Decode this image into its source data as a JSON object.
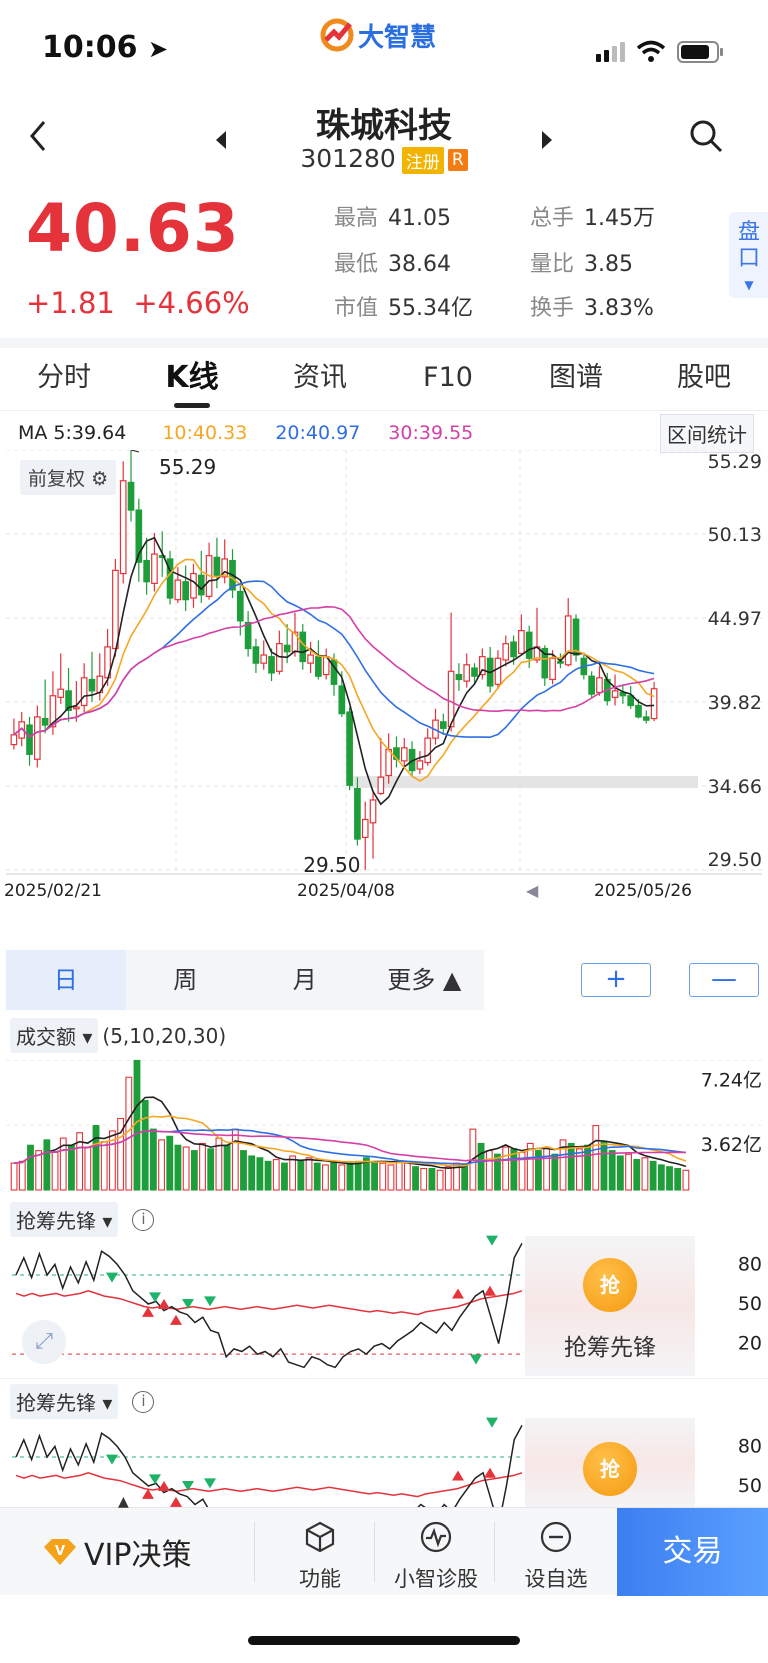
{
  "status": {
    "time": "10:06"
  },
  "app": {
    "logo_text": "大智慧"
  },
  "stock": {
    "name": "珠城科技",
    "code": "301280",
    "badge_registered": "注册",
    "badge_r": "R",
    "price": "40.63",
    "change": "+1.81",
    "change_pct": "+4.66%",
    "stats": [
      {
        "label": "最高",
        "value": "41.05"
      },
      {
        "label": "总手",
        "value": "1.45万"
      },
      {
        "label": "最低",
        "value": "38.64"
      },
      {
        "label": "量比",
        "value": "3.85"
      },
      {
        "label": "市值",
        "value": "55.34亿"
      },
      {
        "label": "换手",
        "value": "3.83%"
      }
    ],
    "pankou": "盘口"
  },
  "tabs": [
    "分时",
    "K线",
    "资讯",
    "F10",
    "图谱",
    "股吧"
  ],
  "active_tab": "K线",
  "ma": {
    "ma5": "MA 5:39.64",
    "ma10": "10:40.33",
    "ma20": "20:40.97",
    "ma30": "30:39.55"
  },
  "colors": {
    "ma5": "#222222",
    "ma10": "#f5a623",
    "ma20": "#2f6fe4",
    "ma30": "#d63fa5",
    "up": "#e5333b",
    "down": "#1e9e3a",
    "accent": "#2f6fe4"
  },
  "range_stats_label": "区间统计",
  "adjust_label": "前复权",
  "chart_data": [
    {
      "type": "candlestick",
      "y_ticks": [
        "55.29",
        "50.13",
        "44.97",
        "39.82",
        "34.66",
        "29.50"
      ],
      "ylim": [
        29.5,
        55.29
      ],
      "x_ticks": [
        "2025/02/21",
        "2025/04/08",
        "2025/05/26"
      ],
      "annotations": {
        "high": "55.29",
        "low": "29.50"
      },
      "series": [
        {
          "name": "MA 5:39.64",
          "color": "#222222"
        },
        {
          "name": "10:40.33",
          "color": "#f5a623"
        },
        {
          "name": "20:40.97",
          "color": "#2f6fe4"
        },
        {
          "name": "30:39.55",
          "color": "#d63fa5"
        }
      ],
      "candles": [
        [
          37.2,
          37.8,
          38.8,
          36.9
        ],
        [
          37.6,
          38.6,
          39.2,
          37.1
        ],
        [
          38.4,
          36.6,
          38.9,
          35.9
        ],
        [
          36.3,
          38.9,
          39.6,
          35.8
        ],
        [
          38.8,
          38.4,
          41.2,
          37.9
        ],
        [
          38.3,
          40.2,
          41.7,
          37.8
        ],
        [
          40.1,
          40.6,
          42.8,
          39.7
        ],
        [
          40.5,
          39.3,
          41.9,
          38.6
        ],
        [
          39.4,
          39.5,
          41.1,
          38.6
        ],
        [
          39.6,
          41.3,
          42.2,
          39.2
        ],
        [
          41.2,
          40.5,
          42.9,
          39.8
        ],
        [
          40.4,
          41.4,
          42.8,
          39.9
        ],
        [
          41.3,
          43.2,
          44.3,
          40.8
        ],
        [
          43.1,
          47.9,
          48.6,
          42.6
        ],
        [
          47.7,
          53.4,
          54.6,
          47.1
        ],
        [
          53.3,
          51.6,
          55.29,
          50.9
        ],
        [
          51.6,
          48.4,
          52.3,
          47.2
        ],
        [
          48.5,
          47.2,
          49.9,
          46.4
        ],
        [
          47.1,
          48.9,
          50.2,
          46.6
        ],
        [
          48.8,
          48.7,
          50.3,
          47.5
        ],
        [
          48.6,
          46.2,
          49.1,
          45.8
        ],
        [
          46.1,
          47.3,
          48.1,
          45.9
        ],
        [
          47.2,
          46.1,
          48.2,
          45.4
        ],
        [
          46.2,
          47.7,
          48.3,
          45.6
        ],
        [
          47.6,
          46.4,
          49.1,
          45.9
        ],
        [
          46.3,
          48.8,
          49.6,
          46.1
        ],
        [
          48.7,
          47.6,
          49.9,
          46.8
        ],
        [
          47.5,
          48.6,
          49.8,
          47.1
        ],
        [
          48.5,
          46.7,
          49.2,
          46.2
        ],
        [
          46.6,
          44.8,
          47.1,
          43.9
        ],
        [
          44.7,
          43.1,
          45.4,
          42.6
        ],
        [
          43.2,
          42.2,
          43.7,
          41.6
        ],
        [
          42.2,
          42.7,
          43.6,
          41.8
        ],
        [
          42.6,
          41.6,
          43.1,
          41.1
        ],
        [
          41.7,
          43.4,
          44.2,
          41.5
        ],
        [
          43.3,
          42.9,
          44.6,
          42.2
        ],
        [
          42.9,
          44.1,
          45.3,
          42.6
        ],
        [
          44.1,
          42.3,
          44.6,
          41.8
        ],
        [
          42.2,
          42.7,
          43.5,
          41.6
        ],
        [
          42.6,
          41.4,
          43.6,
          41.2
        ],
        [
          41.5,
          42.6,
          43.1,
          41.2
        ],
        [
          42.4,
          40.9,
          42.8,
          40.2
        ],
        [
          40.8,
          39.1,
          41.7,
          38.9
        ],
        [
          39.2,
          34.7,
          39.5,
          34.4
        ],
        [
          34.5,
          31.4,
          35.2,
          31.0
        ],
        [
          31.5,
          32.6,
          33.7,
          29.5
        ],
        [
          32.4,
          33.8,
          34.4,
          30.2
        ],
        [
          34.2,
          35.2,
          37.6,
          34.1
        ],
        [
          35.3,
          36.9,
          37.9,
          34.8
        ],
        [
          37.0,
          36.3,
          37.7,
          35.8
        ],
        [
          36.2,
          37.0,
          37.6,
          35.8
        ],
        [
          36.9,
          35.6,
          37.4,
          35.3
        ],
        [
          35.7,
          36.2,
          36.8,
          35.4
        ],
        [
          36.1,
          37.6,
          38.2,
          35.9
        ],
        [
          37.6,
          38.7,
          39.4,
          37.2
        ],
        [
          38.6,
          38.2,
          39.1,
          37.8
        ],
        [
          38.3,
          41.7,
          45.3,
          38.0
        ],
        [
          41.5,
          41.2,
          42.2,
          40.5
        ],
        [
          41.1,
          42.1,
          42.8,
          40.7
        ],
        [
          41.9,
          41.4,
          42.2,
          40.9
        ],
        [
          41.5,
          42.6,
          43.1,
          41.2
        ],
        [
          42.5,
          40.8,
          43.2,
          40.4
        ],
        [
          40.9,
          42.5,
          43.0,
          40.6
        ],
        [
          42.4,
          43.4,
          43.9,
          42.0
        ],
        [
          43.5,
          42.6,
          43.9,
          42.1
        ],
        [
          42.8,
          44.2,
          45.2,
          42.7
        ],
        [
          44.1,
          42.5,
          44.5,
          41.9
        ],
        [
          42.4,
          43.2,
          45.6,
          42.2
        ],
        [
          43.1,
          41.3,
          43.3,
          40.8
        ],
        [
          41.2,
          42.5,
          43.0,
          40.9
        ],
        [
          42.3,
          42.2,
          42.8,
          41.9
        ],
        [
          42.1,
          45.1,
          46.2,
          42.0
        ],
        [
          44.9,
          42.7,
          45.2,
          42.3
        ],
        [
          42.5,
          41.5,
          42.7,
          41.2
        ],
        [
          41.4,
          40.3,
          41.7,
          40.1
        ],
        [
          40.4,
          41.3,
          42.0,
          40.2
        ],
        [
          41.2,
          39.9,
          41.6,
          39.6
        ],
        [
          40.1,
          40.5,
          41.5,
          39.6
        ],
        [
          40.4,
          40.2,
          40.9,
          39.7
        ],
        [
          40.2,
          39.6,
          40.8,
          39.4
        ],
        [
          39.6,
          38.9,
          40.0,
          38.8
        ],
        [
          38.9,
          38.7,
          39.3,
          38.5
        ],
        [
          38.8,
          40.63,
          41.05,
          38.64
        ]
      ]
    },
    {
      "type": "bar",
      "label": "成交额",
      "params": "(5,10,20,30)",
      "y_ticks": [
        "7.24亿",
        "3.62亿"
      ],
      "values": [
        1.5,
        1.6,
        2.5,
        2.2,
        2.8,
        2.1,
        2.9,
        2.5,
        3.2,
        2.4,
        3.6,
        2.7,
        3.3,
        4.0,
        6.3,
        7.24,
        5.0,
        3.4,
        2.8,
        3.0,
        2.5,
        2.4,
        2.2,
        2.6,
        2.3,
        2.9,
        2.5,
        3.4,
        2.2,
        1.9,
        1.8,
        1.6,
        1.7,
        1.5,
        1.9,
        1.6,
        1.8,
        1.5,
        1.4,
        1.5,
        1.4,
        1.5,
        1.6,
        1.8,
        1.6,
        1.5,
        1.4,
        1.6,
        1.5,
        1.3,
        1.2,
        1.2,
        1.1,
        1.3,
        1.5,
        1.4,
        3.4,
        2.6,
        2.2,
        2.0,
        2.4,
        2.3,
        2.1,
        2.6,
        2.2,
        2.4,
        2.0,
        2.8,
        2.6,
        2.3,
        2.5,
        3.6,
        2.7,
        2.2,
        1.9,
        2.0,
        1.7,
        1.8,
        1.6,
        1.4,
        1.3,
        1.2,
        1.1
      ]
    }
  ],
  "x_scroll": "◀",
  "periods": [
    "日",
    "周",
    "月",
    "更多 ▲"
  ],
  "zoom": {
    "plus": "+",
    "minus": "—"
  },
  "indicator": {
    "label": "抢筹先锋",
    "info": "i",
    "y_ticks_full": [
      "80",
      "50",
      "20"
    ],
    "y_ticks_partial": [
      "80",
      "50"
    ],
    "promo_text": "抢筹先锋",
    "promo_icon": "抢"
  },
  "bottom": {
    "vip": "VIP决策",
    "items": [
      "功能",
      "小智诊股",
      "设自选"
    ],
    "trade": "交易"
  }
}
